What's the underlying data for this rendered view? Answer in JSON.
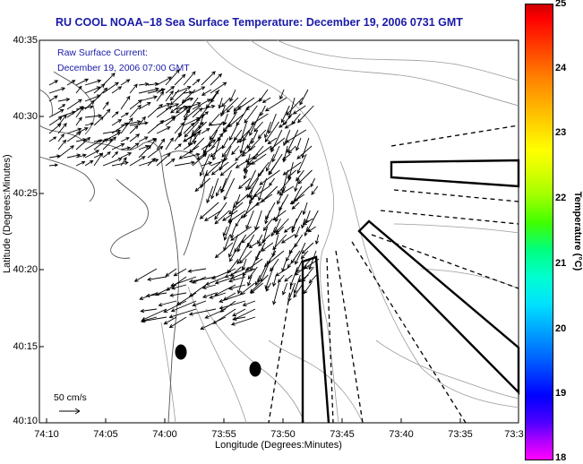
{
  "title": "RU COOL  NOAA−18  Sea Surface Temperature:  December 19, 2006 0731 GMT",
  "annotation": {
    "line1": "Raw Surface Current:",
    "line2": "December 19, 2006 07:00 GMT"
  },
  "scale": {
    "label": "50 cm/s"
  },
  "axes": {
    "xlabel": "Longitude (Degrees:Minutes)",
    "ylabel": "Latitude (Degrees:Minutes)",
    "xticks": [
      "74:10",
      "74:05",
      "74:00",
      "73:55",
      "73:50",
      "73:45",
      "73:40",
      "73:35",
      "73:3"
    ],
    "yticks": [
      "40:35",
      "40:30",
      "40:25",
      "40:20",
      "40:15",
      "40:10"
    ]
  },
  "colorbar": {
    "label": "Temperature (°C)",
    "ticks": [
      "25",
      "24",
      "23",
      "22",
      "21",
      "20",
      "19",
      "18"
    ],
    "min": 18,
    "max": 25
  },
  "colors": {
    "title": "#1a1aa8",
    "coast": "#555555",
    "contour": "#999999"
  }
}
